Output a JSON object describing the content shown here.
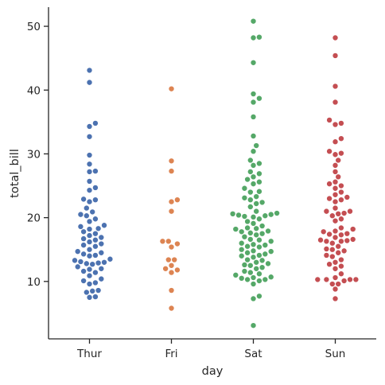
{
  "chart_data": {
    "type": "scatter",
    "subtype": "swarm",
    "xlabel": "day",
    "ylabel": "total_bill",
    "categories": [
      "Thur",
      "Fri",
      "Sat",
      "Sun"
    ],
    "ylim": [
      1,
      53
    ],
    "yticks": [
      10,
      20,
      30,
      40,
      50
    ],
    "grid": false,
    "legend": "none",
    "series": [
      {
        "category": "Thur",
        "color": "#4c72b0",
        "values": [
          7.5,
          7.6,
          8.3,
          8.5,
          8.6,
          9.6,
          9.8,
          10.1,
          10.4,
          10.9,
          11.4,
          11.6,
          11.9,
          12.0,
          12.3,
          12.7,
          12.8,
          12.9,
          13.0,
          13.1,
          13.3,
          13.5,
          14.0,
          14.1,
          14.3,
          14.5,
          14.7,
          15.0,
          15.5,
          15.7,
          15.9,
          16.2,
          16.5,
          16.7,
          16.9,
          17.2,
          17.5,
          17.8,
          18.2,
          18.3,
          18.6,
          18.8,
          19.4,
          19.8,
          20.3,
          20.5,
          20.9,
          21.5,
          22.5,
          22.8,
          22.9,
          24.3,
          24.7,
          25.7,
          27.2,
          27.3,
          28.4,
          29.8,
          32.7,
          34.3,
          34.8,
          41.2,
          43.1
        ]
      },
      {
        "category": "Fri",
        "color": "#dd8452",
        "values": [
          5.8,
          8.6,
          11.4,
          11.8,
          12.0,
          12.5,
          13.4,
          13.4,
          15.4,
          15.9,
          16.3,
          16.3,
          21.0,
          22.5,
          22.8,
          27.3,
          28.9,
          40.2
        ]
      },
      {
        "category": "Sat",
        "color": "#55a868",
        "values": [
          3.1,
          7.3,
          7.7,
          9.6,
          10.1,
          10.3,
          10.3,
          10.5,
          10.6,
          10.7,
          11.0,
          11.2,
          11.4,
          11.6,
          12.0,
          12.2,
          12.5,
          12.6,
          12.8,
          13.0,
          13.3,
          13.4,
          13.8,
          14.0,
          14.1,
          14.3,
          14.5,
          14.7,
          14.8,
          15.0,
          15.4,
          15.5,
          15.7,
          15.8,
          16.0,
          16.3,
          16.5,
          16.6,
          17.0,
          17.3,
          17.5,
          17.6,
          17.8,
          17.9,
          18.2,
          18.3,
          18.4,
          18.7,
          19.1,
          19.4,
          19.8,
          20.1,
          20.2,
          20.3,
          20.4,
          20.5,
          20.6,
          20.7,
          21.0,
          21.7,
          22.2,
          22.4,
          22.8,
          23.1,
          23.3,
          24.0,
          24.1,
          24.6,
          25.3,
          25.6,
          26.0,
          26.4,
          26.9,
          27.2,
          28.2,
          28.5,
          29.0,
          30.4,
          31.3,
          32.8,
          35.8,
          38.1,
          38.7,
          39.4,
          44.3,
          48.2,
          48.3,
          50.8
        ]
      },
      {
        "category": "Sun",
        "color": "#c44e52",
        "values": [
          7.3,
          8.8,
          9.6,
          9.6,
          10.1,
          10.3,
          10.3,
          10.3,
          10.3,
          10.6,
          11.2,
          12.0,
          12.4,
          12.7,
          13.0,
          13.4,
          13.9,
          14.1,
          14.5,
          14.8,
          15.0,
          15.1,
          15.5,
          16.0,
          16.3,
          16.3,
          16.4,
          16.5,
          16.6,
          16.9,
          17.3,
          17.4,
          17.5,
          17.8,
          17.9,
          18.2,
          18.4,
          19.5,
          19.8,
          20.3,
          20.6,
          20.7,
          21.0,
          21.0,
          21.5,
          22.5,
          22.8,
          23.0,
          23.2,
          23.6,
          24.0,
          24.6,
          25.0,
          25.3,
          25.6,
          26.4,
          27.2,
          28.2,
          29.0,
          29.9,
          30.1,
          30.4,
          31.9,
          32.4,
          34.6,
          34.8,
          35.3,
          38.1,
          40.6,
          45.4,
          48.2
        ]
      }
    ]
  }
}
